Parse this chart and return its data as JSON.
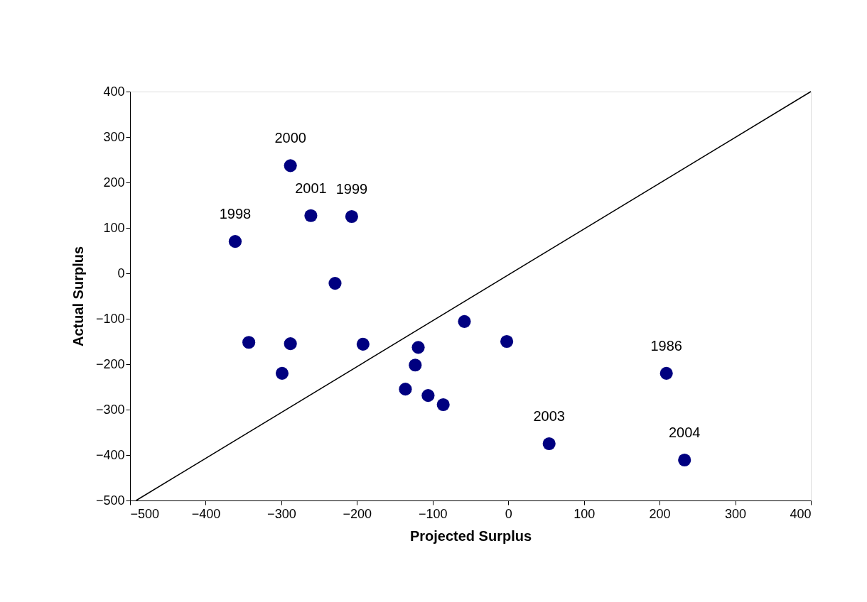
{
  "chart_data": {
    "type": "scatter",
    "xlabel": "Projected Surplus",
    "ylabel": "Actual Surplus",
    "xlim": [
      -500,
      400
    ],
    "ylim": [
      -500,
      400
    ],
    "xticks": [
      -500,
      -400,
      -300,
      -200,
      -100,
      0,
      100,
      200,
      300,
      400
    ],
    "yticks": [
      -500,
      -400,
      -300,
      -200,
      -100,
      0,
      100,
      200,
      300,
      400
    ],
    "grid": false,
    "series": [
      {
        "marker": "circle",
        "color": "#000080",
        "x": [
          -288,
          -261,
          -207,
          -361,
          -229,
          -58,
          -2,
          -343,
          -288,
          -192,
          -119,
          -123,
          -299,
          -136,
          -106,
          -86,
          209,
          54,
          233
        ],
        "values": [
          237,
          127,
          125,
          70,
          -22,
          -106,
          -150,
          -152,
          -155,
          -156,
          -163,
          -202,
          -220,
          -255,
          -269,
          -289,
          -220,
          -375,
          -411
        ]
      },
      {
        "type": "line",
        "color": "#000000",
        "line_style": "solid",
        "x": [
          -492,
          400
        ],
        "values": [
          -500,
          400
        ]
      }
    ],
    "annotations": [
      {
        "text": "2000",
        "x": -288,
        "y": 237
      },
      {
        "text": "2001",
        "x": -261,
        "y": 127
      },
      {
        "text": "1999",
        "x": -207,
        "y": 125
      },
      {
        "text": "1998",
        "x": -361,
        "y": 70
      },
      {
        "text": "1986",
        "x": 209,
        "y": -220
      },
      {
        "text": "2003",
        "x": 54,
        "y": -375
      },
      {
        "text": "2004",
        "x": 233,
        "y": -411
      }
    ]
  }
}
